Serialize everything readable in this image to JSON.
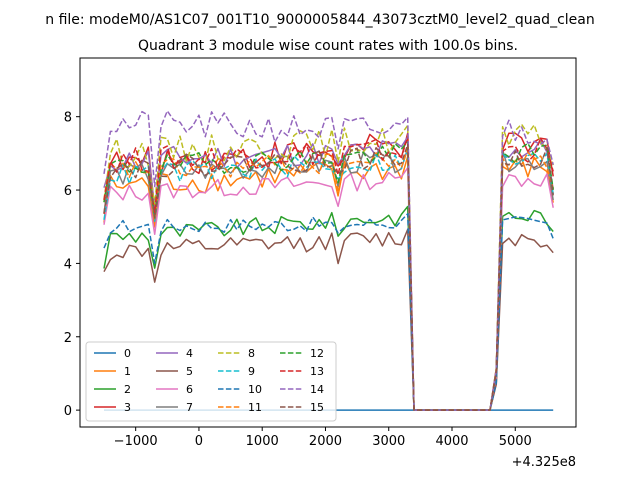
{
  "chart_data": {
    "type": "line",
    "suptitle": "n file: modeM0/AS1C07_001T10_9000005844_43073cztM0_level2_quad_clean",
    "title": "Quadrant 3 module wise count rates with 100.0s bins.",
    "xlabel": "",
    "ylabel": "",
    "x_offset_label": "+4.325e8",
    "xlim": [
      -1880,
      5960
    ],
    "ylim": [
      -0.46,
      9.6
    ],
    "xticks": [
      -1000,
      0,
      1000,
      2000,
      3000,
      4000,
      5000
    ],
    "xtick_labels": [
      "−1000",
      "0",
      "1000",
      "2000",
      "3000",
      "4000",
      "5000"
    ],
    "yticks": [
      0,
      2,
      4,
      6,
      8
    ],
    "ytick_labels": [
      "0",
      "2",
      "4",
      "6",
      "8"
    ],
    "x_start": -1500,
    "x_step": 100,
    "n_points": 72,
    "data_gap_x": [
      3400,
      4600
    ],
    "legend_position": "lower-left",
    "series": [
      {
        "name": "0",
        "color": "#1f77b4",
        "style": "solid",
        "level": [
          0.0,
          0.0
        ],
        "noise": 0.0
      },
      {
        "name": "1",
        "color": "#ff7f0e",
        "style": "solid",
        "level": [
          6.1,
          6.6
        ],
        "noise": 0.35
      },
      {
        "name": "2",
        "color": "#2ca02c",
        "style": "solid",
        "level": [
          4.7,
          5.3
        ],
        "noise": 0.25
      },
      {
        "name": "3",
        "color": "#d62728",
        "style": "solid",
        "level": [
          6.7,
          7.2
        ],
        "noise": 0.4
      },
      {
        "name": "4",
        "color": "#9467bd",
        "style": "solid",
        "level": [
          6.8,
          7.1
        ],
        "noise": 0.35
      },
      {
        "name": "5",
        "color": "#8c564b",
        "style": "solid",
        "level": [
          4.3,
          4.7
        ],
        "noise": 0.25
      },
      {
        "name": "6",
        "color": "#e377c2",
        "style": "solid",
        "level": [
          5.9,
          6.3
        ],
        "noise": 0.25
      },
      {
        "name": "7",
        "color": "#7f7f7f",
        "style": "solid",
        "level": [
          6.4,
          6.8
        ],
        "noise": 0.3
      },
      {
        "name": "8",
        "color": "#bcbd22",
        "style": "dashed",
        "level": [
          7.0,
          7.4
        ],
        "noise": 0.4
      },
      {
        "name": "9",
        "color": "#17becf",
        "style": "dashed",
        "level": [
          6.4,
          6.8
        ],
        "noise": 0.3
      },
      {
        "name": "10",
        "color": "#1f77b4",
        "style": "dashed",
        "level": [
          5.0,
          5.1
        ],
        "noise": 0.2
      },
      {
        "name": "11",
        "color": "#ff7f0e",
        "style": "dashed",
        "level": [
          6.5,
          6.8
        ],
        "noise": 0.3
      },
      {
        "name": "12",
        "color": "#2ca02c",
        "style": "dashed",
        "level": [
          6.6,
          7.0
        ],
        "noise": 0.3
      },
      {
        "name": "13",
        "color": "#d62728",
        "style": "dashed",
        "level": [
          6.8,
          7.1
        ],
        "noise": 0.35
      },
      {
        "name": "14",
        "color": "#9467bd",
        "style": "dashed",
        "level": [
          7.8,
          7.6
        ],
        "noise": 0.4
      },
      {
        "name": "15",
        "color": "#8c564b",
        "style": "dashed",
        "level": [
          6.6,
          6.9
        ],
        "noise": 0.3
      }
    ]
  }
}
